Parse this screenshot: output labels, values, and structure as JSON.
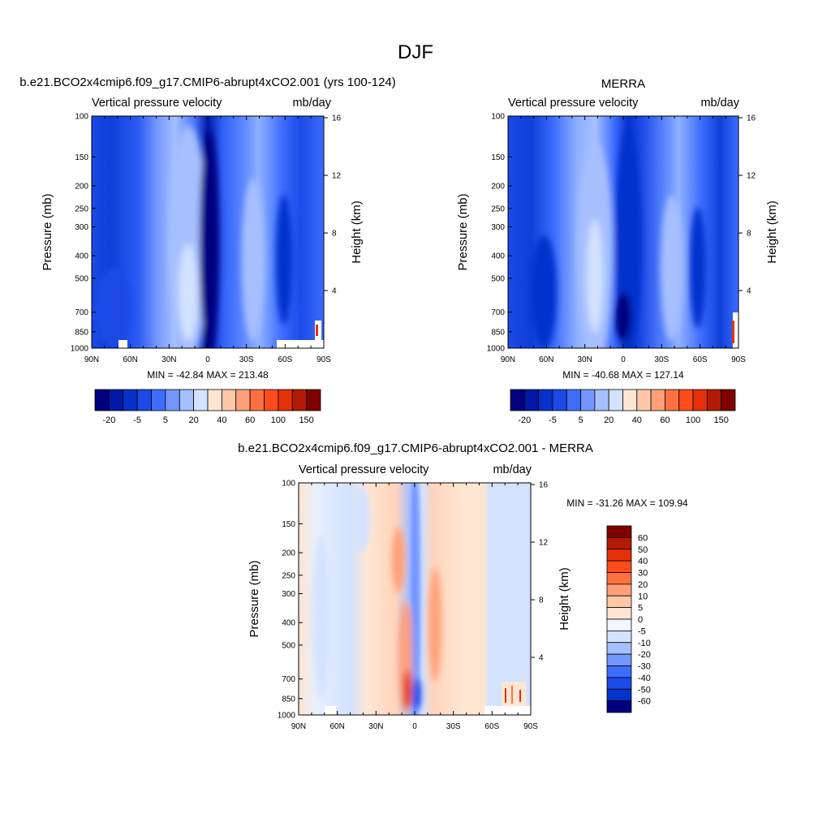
{
  "figure_title": "DJF",
  "chart_data": [
    {
      "type": "heatmap",
      "panel": "model",
      "title": "b.e21.BCO2x4cmip6.f09_g17.CMIP6-abrupt4xCO2.001 (yrs 100-124)",
      "left_string": "Vertical pressure velocity",
      "right_string": "mb/day",
      "ylabel": "Pressure (mb)",
      "y2label": "Height (km)",
      "x_ticks": [
        "90N",
        "60N",
        "30N",
        "0",
        "30S",
        "60S",
        "90S"
      ],
      "y_ticks": [
        "100",
        "150",
        "200",
        "250",
        "300",
        "400",
        "500",
        "700",
        "850",
        "1000"
      ],
      "y_tick_values": [
        100,
        150,
        200,
        250,
        300,
        400,
        500,
        700,
        850,
        1000
      ],
      "y2_ticks": [
        "16",
        "12",
        "8",
        "4"
      ],
      "y2_tick_values": [
        16,
        12,
        8,
        4
      ],
      "xlim": [
        90,
        -90
      ],
      "ylim": [
        1000,
        100
      ],
      "min_max_text": "MIN = -42.84  MAX = 213.48",
      "min": -42.84,
      "max": 213.48,
      "colorbar": {
        "orientation": "horizontal",
        "labels": [
          "-20",
          "-5",
          "5",
          "20",
          "40",
          "60",
          "100",
          "150"
        ],
        "colors": [
          "#00007f",
          "#0019a6",
          "#0632cc",
          "#1b4ae6",
          "#3d6dff",
          "#7396ff",
          "#a6bfff",
          "#d2e2ff",
          "#ffe6d2",
          "#ffc7a8",
          "#ffa07a",
          "#ff7040",
          "#ff4c1a",
          "#e6300a",
          "#b31a04",
          "#7f0000"
        ]
      },
      "features": [
        {
          "label": "tropical ascent core near equator",
          "lat": 0,
          "p_top": 170,
          "value_class": "strong negative"
        },
        {
          "label": "northern subtropical descent",
          "lat": 25,
          "p_top": 140,
          "value_class": "weak"
        },
        {
          "label": "southern subtropical descent",
          "lat": -30,
          "p_top": 230,
          "value_class": "weak"
        }
      ]
    },
    {
      "type": "heatmap",
      "panel": "obs",
      "title": "MERRA",
      "left_string": "Vertical pressure velocity",
      "right_string": "mb/day",
      "ylabel": "Pressure (mb)",
      "y2label": "Height (km)",
      "x_ticks": [
        "90N",
        "60N",
        "30N",
        "0",
        "30S",
        "60S",
        "90S"
      ],
      "y_ticks": [
        "100",
        "150",
        "200",
        "250",
        "300",
        "400",
        "500",
        "700",
        "850",
        "1000"
      ],
      "y_tick_values": [
        100,
        150,
        200,
        250,
        300,
        400,
        500,
        700,
        850,
        1000
      ],
      "y2_ticks": [
        "16",
        "12",
        "8",
        "4"
      ],
      "y2_tick_values": [
        16,
        12,
        8,
        4
      ],
      "xlim": [
        90,
        -90
      ],
      "ylim": [
        1000,
        100
      ],
      "min_max_text": "MIN = -40.68  MAX = 127.14",
      "min": -40.68,
      "max": 127.14,
      "colorbar": {
        "orientation": "horizontal",
        "labels": [
          "-20",
          "-5",
          "5",
          "20",
          "40",
          "60",
          "100",
          "150"
        ],
        "colors": [
          "#00007f",
          "#0019a6",
          "#0632cc",
          "#1b4ae6",
          "#3d6dff",
          "#7396ff",
          "#a6bfff",
          "#d2e2ff",
          "#ffe6d2",
          "#ffc7a8",
          "#ffa07a",
          "#ff7040",
          "#ff4c1a",
          "#e6300a",
          "#b31a04",
          "#7f0000"
        ]
      },
      "features": [
        {
          "label": "tropical ascent near equator",
          "lat": -5,
          "p_top": 180,
          "value_class": "strong negative"
        },
        {
          "label": "northern subtropical descent",
          "lat": 25,
          "p_top": 210,
          "value_class": "weak"
        },
        {
          "label": "southern subtropical descent",
          "lat": -28,
          "p_top": 270,
          "value_class": "weak"
        }
      ]
    },
    {
      "type": "heatmap",
      "panel": "difference",
      "title": "b.e21.BCO2x4cmip6.f09_g17.CMIP6-abrupt4xCO2.001 - MERRA",
      "left_string": "Vertical pressure velocity",
      "right_string": "mb/day",
      "ylabel": "Pressure (mb)",
      "y2label": "Height (km)",
      "x_ticks": [
        "90N",
        "60N",
        "30N",
        "0",
        "30S",
        "60S",
        "90S"
      ],
      "y_ticks": [
        "100",
        "150",
        "200",
        "250",
        "300",
        "400",
        "500",
        "700",
        "850",
        "1000"
      ],
      "y_tick_values": [
        100,
        150,
        200,
        250,
        300,
        400,
        500,
        700,
        850,
        1000
      ],
      "y2_ticks": [
        "16",
        "12",
        "8",
        "4"
      ],
      "y2_tick_values": [
        16,
        12,
        8,
        4
      ],
      "xlim": [
        90,
        -90
      ],
      "ylim": [
        1000,
        100
      ],
      "min_max_text": "MIN = -31.26  MAX = 109.94",
      "min": -31.26,
      "max": 109.94,
      "colorbar": {
        "orientation": "vertical",
        "labels": [
          "60",
          "50",
          "40",
          "30",
          "20",
          "10",
          "5",
          "0",
          "-5",
          "-10",
          "-20",
          "-30",
          "-40",
          "-50",
          "-60"
        ],
        "colors": [
          "#7f0000",
          "#b31a04",
          "#e6300a",
          "#ff4c1a",
          "#ff7040",
          "#ffa07a",
          "#ffc7a8",
          "#ffe6d2",
          "#f0f5ff",
          "#d2e2ff",
          "#a6bfff",
          "#7396ff",
          "#3d6dff",
          "#1b4ae6",
          "#0632cc",
          "#00007f"
        ]
      },
      "features": [
        {
          "label": "negative difference near equator",
          "lat": 0,
          "p_top": 120,
          "value_class": "negative"
        },
        {
          "label": "positive difference north of equator",
          "lat": 8,
          "p_top": 170,
          "value_class": "positive"
        },
        {
          "label": "positive difference south of equator",
          "lat": -12,
          "p_top": 200,
          "value_class": "positive"
        }
      ]
    }
  ]
}
